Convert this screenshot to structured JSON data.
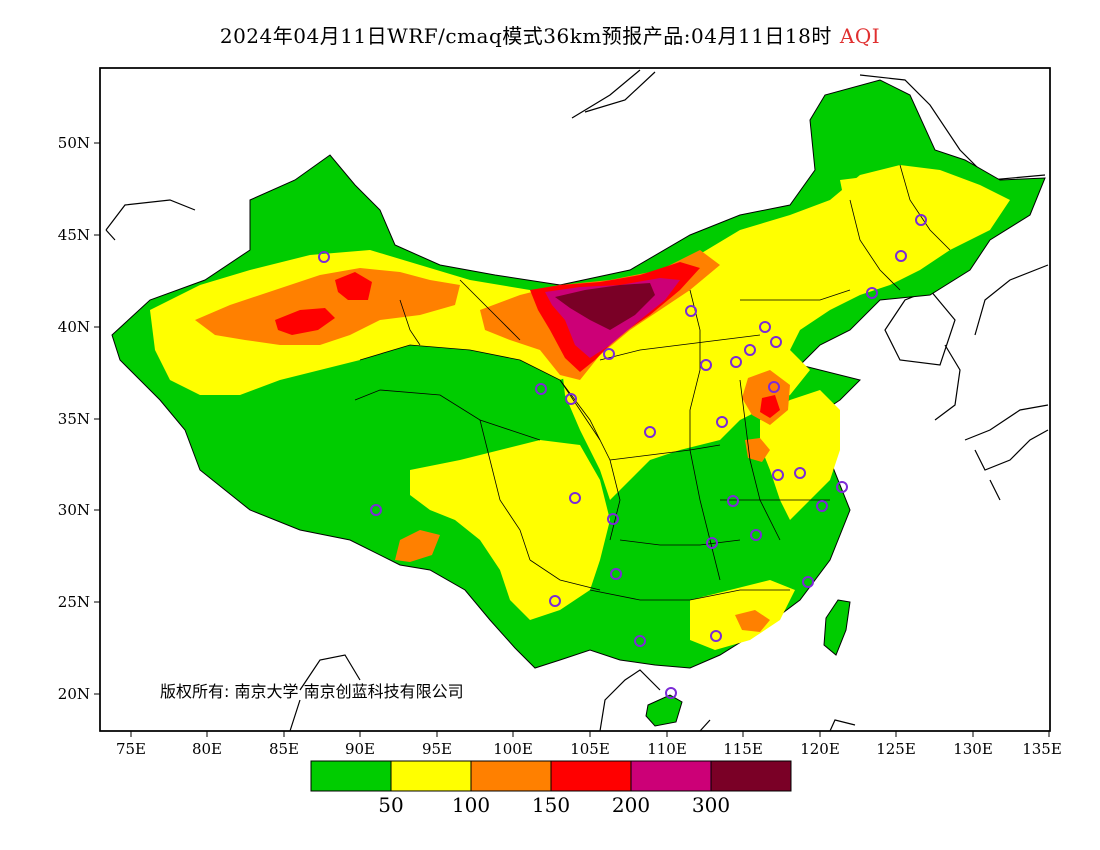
{
  "title": {
    "main": "2024年04月11日WRF/cmaq模式36km预报产品:04月11日18时",
    "variable": "AQI"
  },
  "axes": {
    "lat_ticks": [
      "20N",
      "25N",
      "30N",
      "35N",
      "40N",
      "45N",
      "50N"
    ],
    "lon_ticks": [
      "75E",
      "80E",
      "85E",
      "90E",
      "95E",
      "100E",
      "105E",
      "110E",
      "115E",
      "120E",
      "125E",
      "130E",
      "135E"
    ]
  },
  "copyright": "版权所有: 南京大学 南京创蓝科技有限公司",
  "colorbar": {
    "colors": [
      "#00cc00",
      "#ffff00",
      "#ff8000",
      "#ff0000",
      "#cc0077",
      "#7a0026"
    ],
    "labels": [
      "50",
      "100",
      "150",
      "200",
      "300"
    ]
  },
  "colors": {
    "green": "#00cc00",
    "yellow": "#ffff00",
    "orange": "#ff8000",
    "red": "#ff0000",
    "purple": "#cc0077",
    "maroon": "#7a0026",
    "station_marker": "#7b2bd6"
  }
}
